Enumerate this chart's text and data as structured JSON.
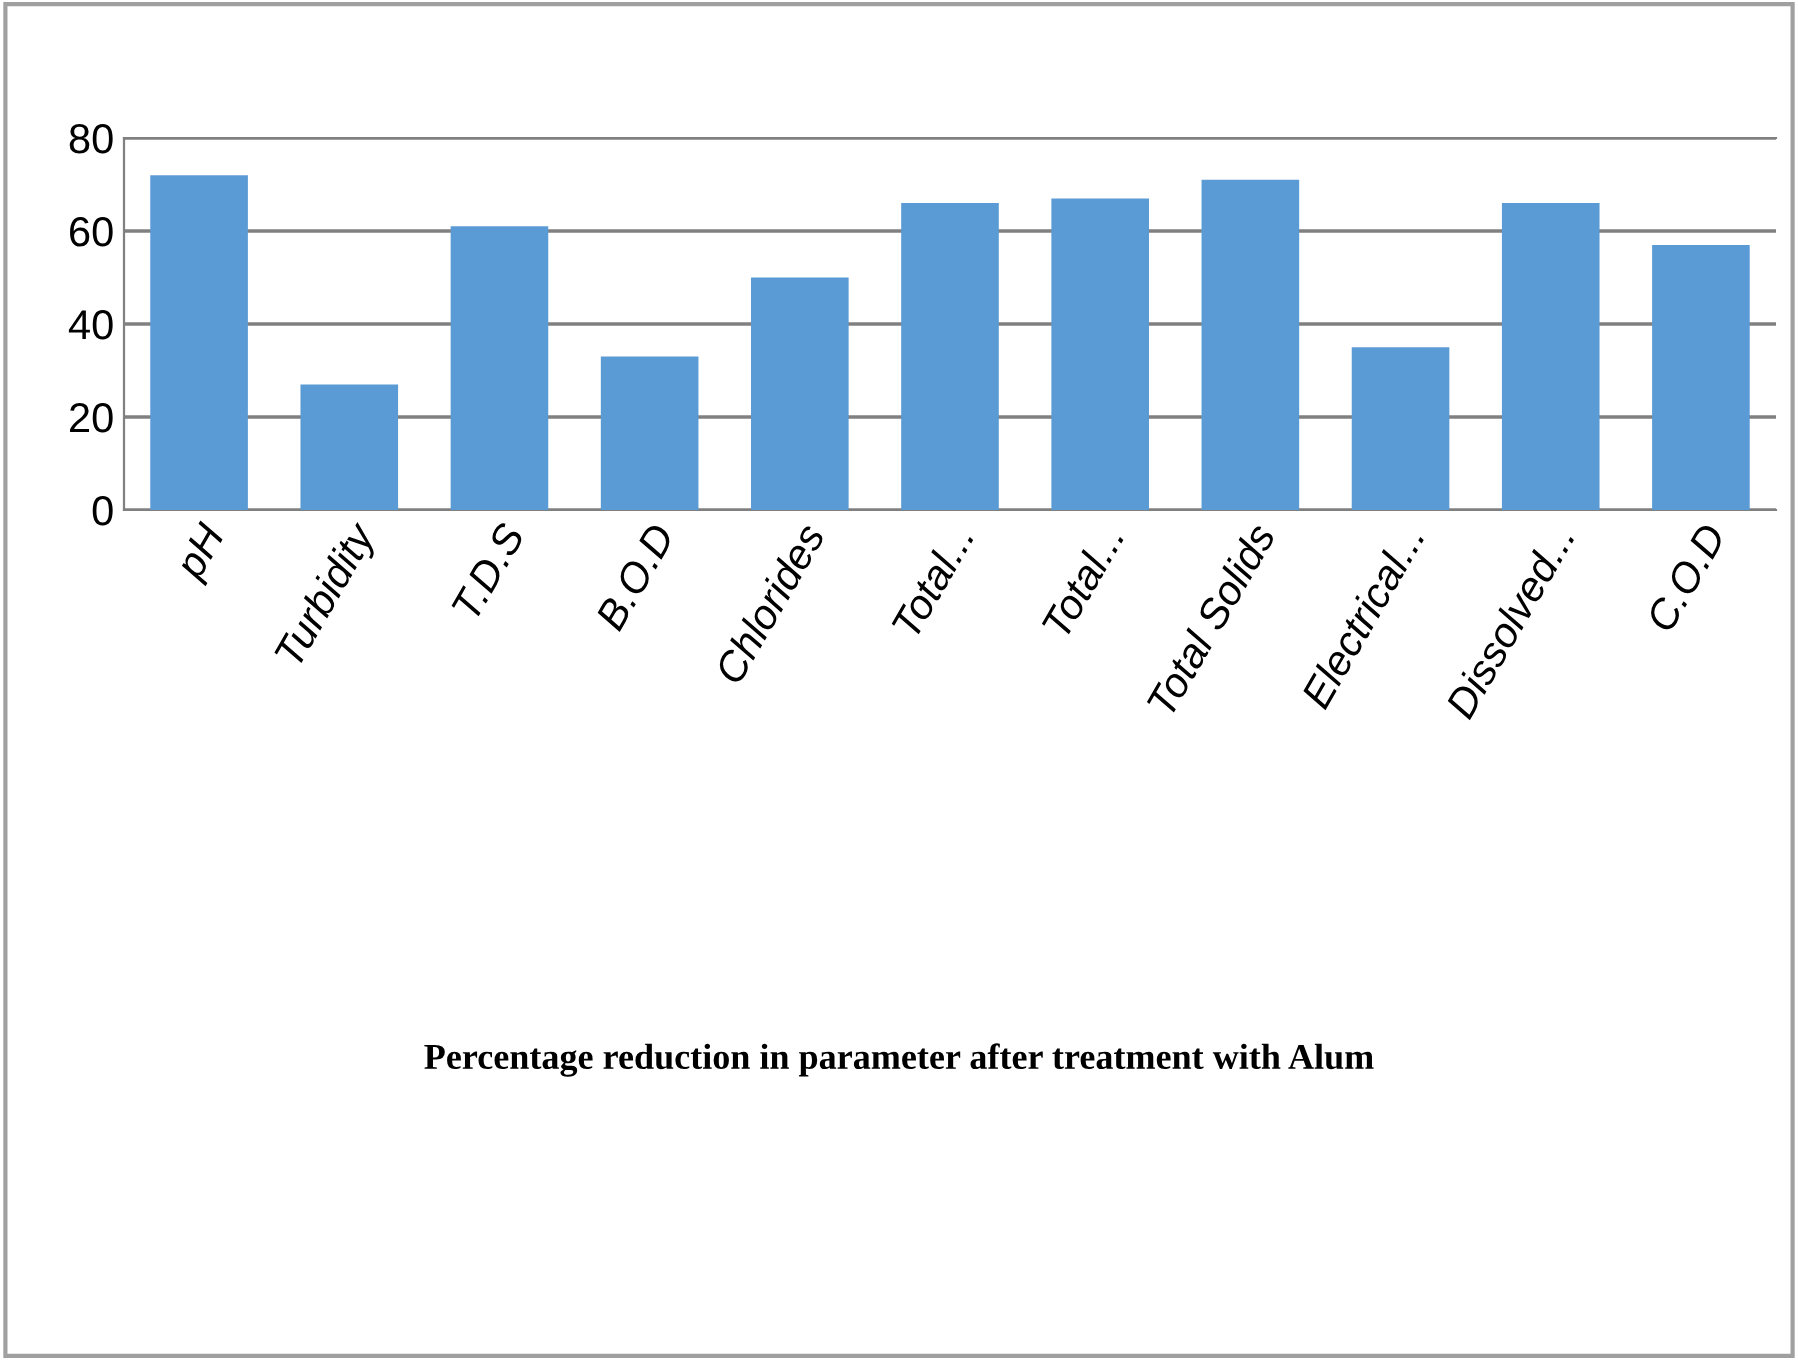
{
  "chart_data": {
    "type": "bar",
    "title": "Percentage reduction in parameter after treatment with Alum",
    "categories": [
      "pH",
      "Turbidity",
      "T.D.S",
      "B.O.D",
      "Chlorides",
      "Total...",
      "Total...",
      "Total Solids",
      "Electrical...",
      "Dissolved...",
      "C.O.D"
    ],
    "values": [
      72,
      27,
      61,
      33,
      50,
      66,
      67,
      71,
      35,
      66,
      57
    ],
    "color": "#5b9bd5",
    "ylim": [
      0,
      80
    ],
    "yticks": [
      0,
      20,
      40,
      60,
      80
    ],
    "grid": "y"
  }
}
